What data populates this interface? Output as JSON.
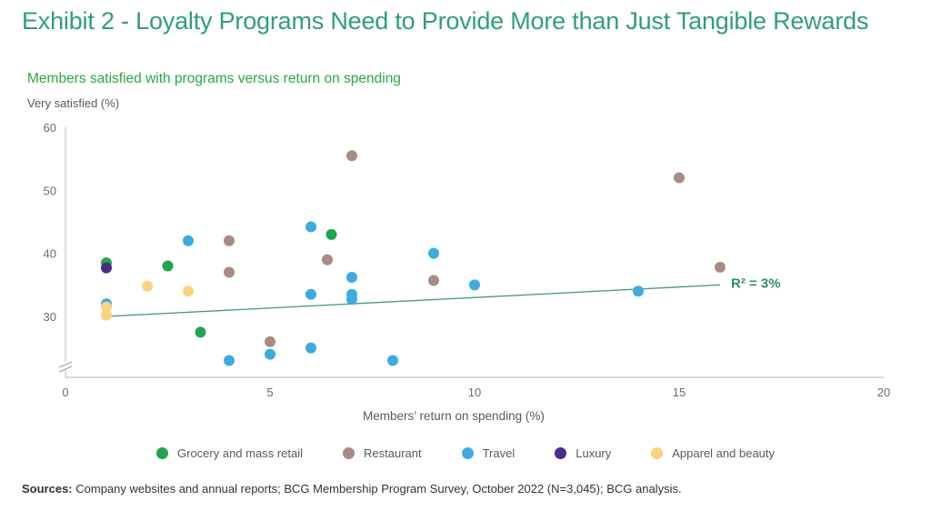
{
  "header": {
    "title": "Exhibit 2 - Loyalty Programs Need to Provide More than Just Tangible Rewards"
  },
  "colors": {
    "title": "#2e9e7c",
    "subtitle": "#29a847",
    "trendline": "#3e9b7a",
    "grocery": "#1ea54e",
    "restaurant": "#a78b85",
    "travel": "#3aace0",
    "luxury": "#4b2b8c",
    "apparel": "#fcd27c"
  },
  "footer": {
    "sources_label": "Sources:",
    "sources_text": " Company websites and annual reports; BCG Membership Program Survey, October 2022 (N=3,045); BCG analysis."
  },
  "chart_data": {
    "type": "scatter",
    "title": "Members satisfied with programs versus return on spending",
    "xlabel": "Members’ return on spending (%)",
    "ylabel": "Very satisfied (%)",
    "xlim": [
      0,
      20
    ],
    "ylim": [
      20,
      60
    ],
    "x_ticks": [
      "0",
      "5",
      "10",
      "15",
      "20"
    ],
    "y_ticks": [
      "30",
      "40",
      "50",
      "60"
    ],
    "axis_break": true,
    "legend_position": "bottom",
    "trendline": {
      "x": [
        1,
        16
      ],
      "y": [
        30,
        35
      ],
      "label": "R² = 3%"
    },
    "series": [
      {
        "name": "Grocery and mass retail",
        "color_key": "grocery",
        "points": [
          [
            1,
            38.5
          ],
          [
            2.5,
            38
          ],
          [
            3.3,
            27.5
          ],
          [
            6.5,
            43
          ]
        ]
      },
      {
        "name": "Restaurant",
        "color_key": "restaurant",
        "points": [
          [
            4,
            42
          ],
          [
            4,
            37
          ],
          [
            5,
            26
          ],
          [
            6.4,
            39
          ],
          [
            7,
            55.5
          ],
          [
            9,
            35.7
          ],
          [
            15,
            52
          ],
          [
            16,
            37.8
          ]
        ]
      },
      {
        "name": "Travel",
        "color_key": "travel",
        "points": [
          [
            1,
            32
          ],
          [
            3,
            42
          ],
          [
            4,
            23
          ],
          [
            5,
            24
          ],
          [
            6,
            44.2
          ],
          [
            6,
            33.5
          ],
          [
            6,
            25
          ],
          [
            7,
            36.2
          ],
          [
            7,
            33.5
          ],
          [
            7,
            32.7
          ],
          [
            8,
            23
          ],
          [
            9,
            40
          ],
          [
            10,
            35
          ],
          [
            14,
            34
          ]
        ]
      },
      {
        "name": "Luxury",
        "color_key": "luxury",
        "points": [
          [
            1,
            37.7
          ]
        ]
      },
      {
        "name": "Apparel and beauty",
        "color_key": "apparel",
        "points": [
          [
            1,
            31.5
          ],
          [
            1,
            30.2
          ],
          [
            2,
            34.8
          ],
          [
            3,
            34
          ]
        ]
      }
    ]
  }
}
